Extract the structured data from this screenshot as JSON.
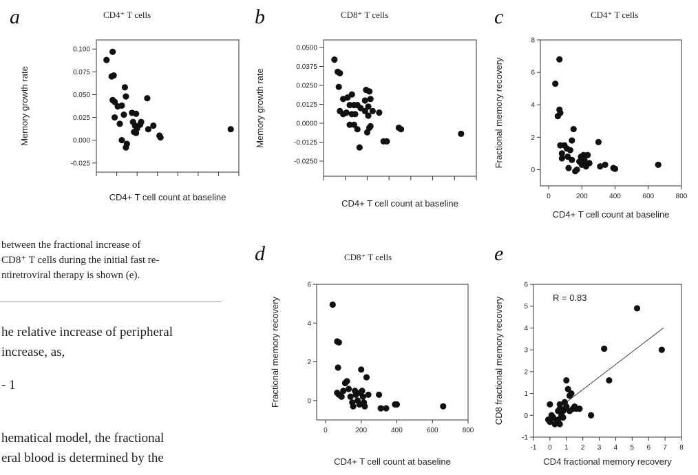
{
  "text": {
    "caption_lines": [
      "between the fractional increase of",
      "CD8⁺ T cells during the initial fast re-",
      "ntiretroviral therapy is shown (e)."
    ],
    "body_lines": [
      "he relative increase of peripheral",
      "increase, as,",
      "- 1",
      "hematical model, the fractional",
      "eral blood is determined by the"
    ]
  },
  "chart_data": [
    {
      "letter": "a",
      "type": "scatter",
      "title": "CD4⁺ T cells",
      "xlabel": "CD4+ T cell count at baseline",
      "ylabel": "Memory growth rate",
      "xlim": [
        0,
        700
      ],
      "ylim": [
        -0.035,
        0.11
      ],
      "yticks": [
        -0.025,
        0.0,
        0.025,
        0.05,
        0.075,
        0.1
      ],
      "ytick_labels": [
        "-0.025",
        "0.000",
        "0.025",
        "0.050",
        "0.075",
        "0.100"
      ],
      "xticks": [
        0,
        100,
        200,
        300,
        400,
        500,
        600,
        700
      ],
      "xtick_labels": [],
      "points": [
        [
          50,
          0.088
        ],
        [
          80,
          0.097
        ],
        [
          75,
          0.07
        ],
        [
          85,
          0.071
        ],
        [
          80,
          0.044
        ],
        [
          90,
          0.042
        ],
        [
          105,
          0.037
        ],
        [
          125,
          0.038
        ],
        [
          140,
          0.058
        ],
        [
          145,
          0.048
        ],
        [
          135,
          0.028
        ],
        [
          90,
          0.025
        ],
        [
          115,
          0.018
        ],
        [
          125,
          0.0
        ],
        [
          150,
          -0.004
        ],
        [
          145,
          -0.008
        ],
        [
          175,
          0.03
        ],
        [
          195,
          0.029
        ],
        [
          180,
          0.02
        ],
        [
          190,
          0.016
        ],
        [
          200,
          0.013
        ],
        [
          185,
          0.009
        ],
        [
          195,
          0.008
        ],
        [
          215,
          0.017
        ],
        [
          220,
          0.02
        ],
        [
          250,
          0.046
        ],
        [
          255,
          0.012
        ],
        [
          280,
          0.016
        ],
        [
          310,
          0.005
        ],
        [
          315,
          0.003
        ],
        [
          660,
          0.012
        ]
      ]
    },
    {
      "letter": "b",
      "type": "scatter",
      "title": "CD8⁺ T cells",
      "xlabel": "CD4+ T cell count at baseline",
      "ylabel": "Memory growth rate",
      "xlim": [
        0,
        700
      ],
      "ylim": [
        -0.035,
        0.055
      ],
      "yticks": [
        -0.025,
        -0.0125,
        0.0,
        0.0125,
        0.025,
        0.0375,
        0.05
      ],
      "ytick_labels": [
        "-0.0250",
        "-0.0125",
        "0.0000",
        "0.0125",
        "0.0250",
        "0.0375",
        "0.0500"
      ],
      "xticks": [
        0,
        100,
        200,
        300,
        400,
        500,
        600,
        700
      ],
      "xtick_labels": [],
      "points": [
        [
          50,
          0.042
        ],
        [
          65,
          0.034
        ],
        [
          75,
          0.033
        ],
        [
          70,
          0.024
        ],
        [
          90,
          0.016
        ],
        [
          110,
          0.017
        ],
        [
          130,
          0.019
        ],
        [
          120,
          0.012
        ],
        [
          140,
          0.012
        ],
        [
          155,
          0.012
        ],
        [
          170,
          0.01
        ],
        [
          75,
          0.008
        ],
        [
          90,
          0.006
        ],
        [
          105,
          0.007
        ],
        [
          130,
          0.006
        ],
        [
          145,
          0.006
        ],
        [
          195,
          0.022
        ],
        [
          210,
          0.021
        ],
        [
          190,
          0.015
        ],
        [
          205,
          0.011
        ],
        [
          215,
          0.016
        ],
        [
          190,
          0.008
        ],
        [
          205,
          0.005
        ],
        [
          225,
          0.008
        ],
        [
          120,
          -0.001
        ],
        [
          140,
          -0.001
        ],
        [
          155,
          -0.004
        ],
        [
          165,
          -0.016
        ],
        [
          200,
          -0.006
        ],
        [
          210,
          -0.003
        ],
        [
          215,
          -0.002
        ],
        [
          255,
          0.007
        ],
        [
          275,
          -0.012
        ],
        [
          290,
          -0.012
        ],
        [
          345,
          -0.003
        ],
        [
          355,
          -0.004
        ],
        [
          630,
          -0.007
        ]
      ]
    },
    {
      "letter": "c",
      "type": "scatter",
      "title": "CD4⁺ T cells",
      "xlabel": "CD4+ T cell count at baseline",
      "ylabel": "Fractional memory recovery",
      "xlim": [
        -50,
        800
      ],
      "ylim": [
        -1,
        8
      ],
      "yticks": [
        0,
        2,
        4,
        6,
        8
      ],
      "ytick_labels": [
        "0",
        "2",
        "4",
        "6",
        "8"
      ],
      "xticks": [
        0,
        200,
        400,
        600,
        800
      ],
      "xtick_labels": [
        "0",
        "200",
        "400",
        "600",
        "800"
      ],
      "points": [
        [
          40,
          5.3
        ],
        [
          65,
          6.8
        ],
        [
          55,
          3.3
        ],
        [
          65,
          3.7
        ],
        [
          70,
          3.5
        ],
        [
          70,
          1.5
        ],
        [
          95,
          1.5
        ],
        [
          80,
          1.0
        ],
        [
          80,
          0.7
        ],
        [
          110,
          1.3
        ],
        [
          115,
          0.8
        ],
        [
          130,
          1.2
        ],
        [
          140,
          1.8
        ],
        [
          150,
          2.5
        ],
        [
          120,
          0.1
        ],
        [
          140,
          0.6
        ],
        [
          160,
          -0.1
        ],
        [
          170,
          0.0
        ],
        [
          185,
          0.5
        ],
        [
          195,
          0.8
        ],
        [
          200,
          0.3
        ],
        [
          210,
          0.9
        ],
        [
          215,
          0.6
        ],
        [
          220,
          0.4
        ],
        [
          225,
          0.2
        ],
        [
          235,
          0.9
        ],
        [
          245,
          0.4
        ],
        [
          300,
          1.7
        ],
        [
          310,
          0.2
        ],
        [
          340,
          0.3
        ],
        [
          390,
          0.1
        ],
        [
          400,
          0.05
        ],
        [
          660,
          0.3
        ]
      ]
    },
    {
      "letter": "d",
      "type": "scatter",
      "title": "CD8⁺ T cells",
      "xlabel": "CD4+ T cell count at baseline",
      "ylabel": "Fractional memory recovery",
      "xlim": [
        -50,
        800
      ],
      "ylim": [
        -1,
        6
      ],
      "yticks": [
        0,
        2,
        4,
        6
      ],
      "ytick_labels": [
        "0",
        "2",
        "4",
        "6"
      ],
      "xticks": [
        0,
        200,
        400,
        600,
        800
      ],
      "xtick_labels": [
        "0",
        "200",
        "400",
        "600",
        "800"
      ],
      "points": [
        [
          40,
          4.95
        ],
        [
          65,
          3.05
        ],
        [
          75,
          3.0
        ],
        [
          70,
          1.7
        ],
        [
          65,
          0.4
        ],
        [
          75,
          0.3
        ],
        [
          90,
          0.2
        ],
        [
          100,
          0.5
        ],
        [
          110,
          0.9
        ],
        [
          120,
          1.0
        ],
        [
          130,
          0.6
        ],
        [
          140,
          0.2
        ],
        [
          150,
          -0.1
        ],
        [
          155,
          -0.3
        ],
        [
          165,
          0.5
        ],
        [
          170,
          0.3
        ],
        [
          180,
          0.0
        ],
        [
          190,
          -0.2
        ],
        [
          195,
          0.4
        ],
        [
          200,
          1.6
        ],
        [
          205,
          0.5
        ],
        [
          210,
          0.2
        ],
        [
          215,
          -0.1
        ],
        [
          220,
          -0.3
        ],
        [
          230,
          1.2
        ],
        [
          240,
          0.3
        ],
        [
          300,
          0.3
        ],
        [
          310,
          -0.4
        ],
        [
          340,
          -0.4
        ],
        [
          390,
          -0.2
        ],
        [
          400,
          -0.2
        ],
        [
          660,
          -0.3
        ]
      ]
    },
    {
      "letter": "e",
      "type": "scatter",
      "xlabel": "CD4 fractional memory recovery",
      "ylabel": "CD8 fractional memory recovery",
      "xlim": [
        -1,
        8
      ],
      "ylim": [
        -1,
        6
      ],
      "yticks": [
        -1,
        0,
        1,
        2,
        3,
        4,
        5,
        6
      ],
      "ytick_labels": [
        "-1",
        "0",
        "1",
        "2",
        "3",
        "4",
        "5",
        "6"
      ],
      "xticks": [
        -1,
        0,
        1,
        2,
        3,
        4,
        5,
        6,
        7,
        8
      ],
      "xtick_labels": [
        "-1",
        "0",
        "1",
        "2",
        "3",
        "4",
        "5",
        "6",
        "7",
        "8"
      ],
      "annotation": "R = 0.83",
      "fit_line": [
        [
          0.3,
          0.2
        ],
        [
          6.9,
          4.0
        ]
      ],
      "points": [
        [
          5.3,
          4.9
        ],
        [
          3.3,
          3.05
        ],
        [
          6.8,
          3.0
        ],
        [
          3.6,
          1.6
        ],
        [
          0.0,
          0.5
        ],
        [
          0.6,
          0.5
        ],
        [
          0.5,
          0.2
        ],
        [
          0.6,
          0.3
        ],
        [
          0.8,
          0.2
        ],
        [
          0.9,
          0.6
        ],
        [
          1.0,
          1.6
        ],
        [
          1.1,
          1.2
        ],
        [
          1.2,
          0.9
        ],
        [
          1.3,
          1.0
        ],
        [
          1.5,
          0.4
        ],
        [
          1.6,
          0.3
        ],
        [
          1.8,
          0.3
        ],
        [
          2.5,
          0.0
        ],
        [
          -0.1,
          -0.2
        ],
        [
          0.0,
          -0.3
        ],
        [
          0.1,
          0.0
        ],
        [
          0.2,
          -0.1
        ],
        [
          0.3,
          -0.4
        ],
        [
          0.4,
          -0.3
        ],
        [
          0.5,
          -0.2
        ],
        [
          0.6,
          -0.4
        ],
        [
          0.7,
          0.0
        ],
        [
          0.8,
          -0.1
        ],
        [
          0.9,
          0.3
        ],
        [
          1.0,
          0.4
        ],
        [
          1.2,
          0.2
        ],
        [
          1.4,
          0.3
        ]
      ]
    }
  ]
}
